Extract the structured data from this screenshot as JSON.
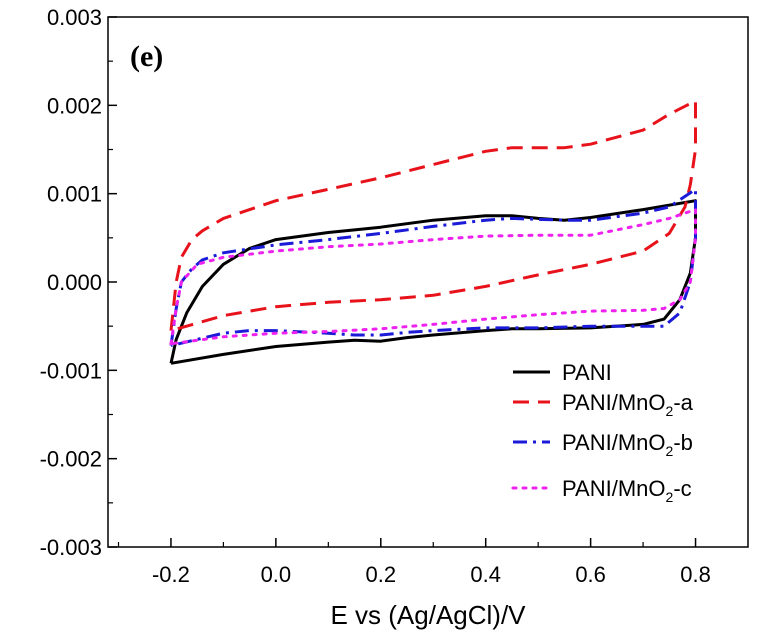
{
  "chart_data": {
    "type": "line",
    "panel_label": "(e)",
    "xlabel": "E vs (Ag/AgCl)/V",
    "ylabel": "",
    "xlim": [
      -0.32,
      0.9
    ],
    "ylim": [
      -0.003,
      0.003
    ],
    "x_ticks": [
      "-0.2",
      "0.0",
      "0.2",
      "0.4",
      "0.6",
      "0.8"
    ],
    "x_tick_values": [
      -0.2,
      0.0,
      0.2,
      0.4,
      0.6,
      0.8
    ],
    "y_ticks": [
      "0.003",
      "0.002",
      "0.001",
      "0.000",
      "-0.001",
      "-0.002",
      "-0.003"
    ],
    "y_tick_values": [
      0.003,
      0.002,
      0.001,
      0.0,
      -0.001,
      -0.002,
      -0.003
    ],
    "grid": false,
    "legend_position": "bottom-right",
    "series": [
      {
        "name": "PANI",
        "legend_main": "PANI",
        "legend_sub": "",
        "legend_tail": "",
        "color": "#000000",
        "dash": "solid",
        "points": [
          [
            -0.2,
            -0.00092
          ],
          [
            -0.19,
            -0.00065
          ],
          [
            -0.17,
            -0.00035
          ],
          [
            -0.14,
            -5e-05
          ],
          [
            -0.1,
            0.0002
          ],
          [
            -0.05,
            0.00038
          ],
          [
            0.0,
            0.00048
          ],
          [
            0.1,
            0.00056
          ],
          [
            0.2,
            0.00062
          ],
          [
            0.3,
            0.0007
          ],
          [
            0.4,
            0.00075
          ],
          [
            0.45,
            0.00075
          ],
          [
            0.5,
            0.00072
          ],
          [
            0.55,
            0.0007
          ],
          [
            0.6,
            0.00073
          ],
          [
            0.7,
            0.00082
          ],
          [
            0.8,
            0.00092
          ],
          [
            0.8,
            0.0005
          ],
          [
            0.79,
            0.0001
          ],
          [
            0.77,
            -0.0002
          ],
          [
            0.74,
            -0.00042
          ],
          [
            0.7,
            -0.00048
          ],
          [
            0.6,
            -0.00052
          ],
          [
            0.5,
            -0.00053
          ],
          [
            0.45,
            -0.00053
          ],
          [
            0.4,
            -0.00055
          ],
          [
            0.3,
            -0.0006
          ],
          [
            0.25,
            -0.00063
          ],
          [
            0.2,
            -0.00067
          ],
          [
            0.15,
            -0.00066
          ],
          [
            0.1,
            -0.00068
          ],
          [
            0.0,
            -0.00073
          ],
          [
            -0.1,
            -0.00082
          ],
          [
            -0.2,
            -0.00092
          ]
        ]
      },
      {
        "name": "PANI/MnO2-a",
        "legend_main": "PANI/MnO",
        "legend_sub": "2",
        "legend_tail": "-a",
        "color": "#e8121b",
        "dash": "dash",
        "points": [
          [
            -0.2,
            -0.00055
          ],
          [
            -0.19,
            0.0
          ],
          [
            -0.18,
            0.00028
          ],
          [
            -0.16,
            0.00048
          ],
          [
            -0.14,
            0.00058
          ],
          [
            -0.1,
            0.00072
          ],
          [
            0.0,
            0.00092
          ],
          [
            0.1,
            0.00105
          ],
          [
            0.2,
            0.00118
          ],
          [
            0.3,
            0.00133
          ],
          [
            0.4,
            0.00148
          ],
          [
            0.45,
            0.00152
          ],
          [
            0.55,
            0.00152
          ],
          [
            0.6,
            0.00156
          ],
          [
            0.7,
            0.00172
          ],
          [
            0.75,
            0.0019
          ],
          [
            0.8,
            0.00205
          ],
          [
            0.8,
            0.0015
          ],
          [
            0.79,
            0.0011
          ],
          [
            0.78,
            0.00085
          ],
          [
            0.75,
            0.00055
          ],
          [
            0.7,
            0.00035
          ],
          [
            0.6,
            0.0002
          ],
          [
            0.5,
            8e-05
          ],
          [
            0.4,
            -5e-05
          ],
          [
            0.3,
            -0.00015
          ],
          [
            0.2,
            -0.0002
          ],
          [
            0.1,
            -0.00023
          ],
          [
            0.0,
            -0.00028
          ],
          [
            -0.1,
            -0.00038
          ],
          [
            -0.2,
            -0.00055
          ]
        ]
      },
      {
        "name": "PANI/MnO2-b",
        "legend_main": "PANI/MnO",
        "legend_sub": "2",
        "legend_tail": "-b",
        "color": "#1a1ad8",
        "dash": "dashdot",
        "points": [
          [
            -0.2,
            -0.00072
          ],
          [
            -0.19,
            -0.0003
          ],
          [
            -0.18,
            0.0
          ],
          [
            -0.16,
            0.00015
          ],
          [
            -0.14,
            0.00025
          ],
          [
            -0.1,
            0.00033
          ],
          [
            0.0,
            0.00042
          ],
          [
            0.1,
            0.00048
          ],
          [
            0.2,
            0.00055
          ],
          [
            0.3,
            0.00063
          ],
          [
            0.4,
            0.0007
          ],
          [
            0.45,
            0.00072
          ],
          [
            0.55,
            0.0007
          ],
          [
            0.6,
            0.0007
          ],
          [
            0.7,
            0.00078
          ],
          [
            0.75,
            0.00085
          ],
          [
            0.8,
            0.00105
          ],
          [
            0.8,
            0.0005
          ],
          [
            0.79,
            0.0
          ],
          [
            0.77,
            -0.00035
          ],
          [
            0.74,
            -0.0005
          ],
          [
            0.7,
            -0.0005
          ],
          [
            0.6,
            -0.0005
          ],
          [
            0.5,
            -0.00052
          ],
          [
            0.4,
            -0.00052
          ],
          [
            0.3,
            -0.00055
          ],
          [
            0.25,
            -0.00057
          ],
          [
            0.2,
            -0.0006
          ],
          [
            0.15,
            -0.0006
          ],
          [
            0.1,
            -0.00058
          ],
          [
            0.0,
            -0.00055
          ],
          [
            -0.05,
            -0.00055
          ],
          [
            -0.1,
            -0.00058
          ],
          [
            -0.2,
            -0.00072
          ]
        ]
      },
      {
        "name": "PANI/MnO2-c",
        "legend_main": "PANI/MnO",
        "legend_sub": "2",
        "legend_tail": "-c",
        "color": "#ee22ee",
        "dash": "dot",
        "points": [
          [
            -0.2,
            -0.0007
          ],
          [
            -0.19,
            -0.0003
          ],
          [
            -0.18,
            0.0
          ],
          [
            -0.15,
            0.0002
          ],
          [
            -0.1,
            0.00028
          ],
          [
            0.0,
            0.00035
          ],
          [
            0.1,
            0.0004
          ],
          [
            0.2,
            0.00043
          ],
          [
            0.3,
            0.00048
          ],
          [
            0.4,
            0.00052
          ],
          [
            0.5,
            0.00053
          ],
          [
            0.6,
            0.00053
          ],
          [
            0.7,
            0.00065
          ],
          [
            0.75,
            0.00072
          ],
          [
            0.8,
            0.00082
          ],
          [
            0.8,
            0.0005
          ],
          [
            0.79,
            0.0
          ],
          [
            0.77,
            -0.0002
          ],
          [
            0.74,
            -0.0003
          ],
          [
            0.7,
            -0.00032
          ],
          [
            0.6,
            -0.00033
          ],
          [
            0.5,
            -0.00037
          ],
          [
            0.4,
            -0.00042
          ],
          [
            0.3,
            -0.00048
          ],
          [
            0.2,
            -0.00053
          ],
          [
            0.1,
            -0.00056
          ],
          [
            0.0,
            -0.00058
          ],
          [
            -0.1,
            -0.00062
          ],
          [
            -0.2,
            -0.0007
          ]
        ]
      }
    ]
  }
}
